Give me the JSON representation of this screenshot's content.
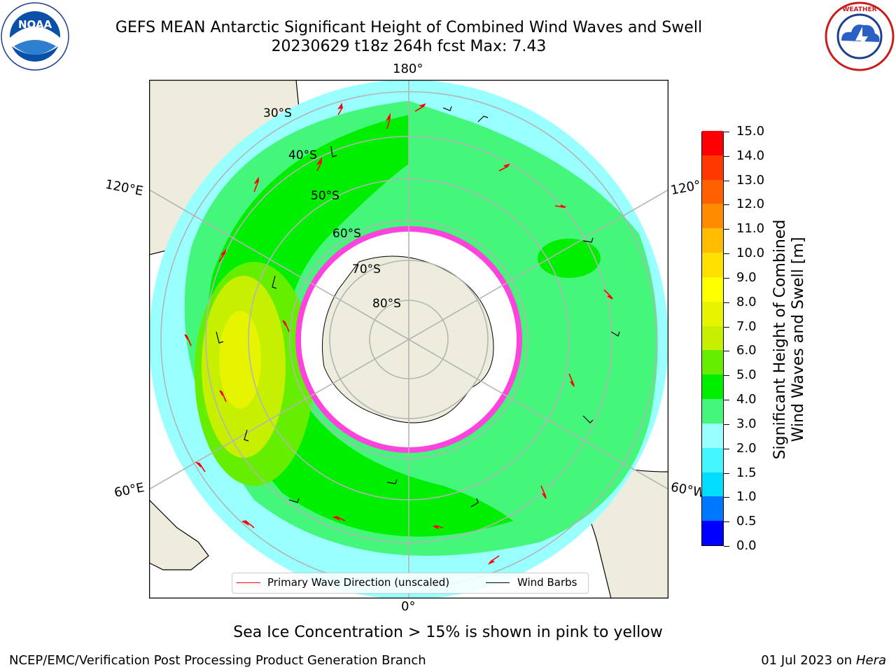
{
  "title": {
    "line1": "GEFS MEAN Antarctic Significant Height of Combined Wind Waves and Swell",
    "line2": "20230629 t18z 264h fcst   Max: 7.43"
  },
  "logos": {
    "left": "noaa-logo",
    "right": "national-weather-service-logo"
  },
  "map": {
    "projection": "south-polar-stereographic",
    "longitude_labels": {
      "top": "180°",
      "bottom": "0°",
      "upper_left": "120°E",
      "upper_right": "120°",
      "lower_left": "60°E",
      "lower_right": "60°W"
    },
    "latitude_labels": [
      "30°S",
      "40°S",
      "50°S",
      "60°S",
      "70°S",
      "80°S"
    ],
    "colors": {
      "land": "#eeecdc",
      "ice": "#ffffff",
      "ice_edge": "#ff44dd",
      "arrow": "#ff0000",
      "barb": "#000000",
      "gridline": "#b4b4b4"
    }
  },
  "legend": {
    "items": [
      {
        "label": "Primary Wave Direction (unscaled)",
        "color": "#ff0000"
      },
      {
        "label": "Wind Barbs",
        "color": "#000000"
      }
    ]
  },
  "colorbar": {
    "title_line1": "Significant Height of Combined",
    "title_line2": "Wind Waves and Swell [m]",
    "levels": [
      0.0,
      0.5,
      1.0,
      1.5,
      2.0,
      3.0,
      4.0,
      5.0,
      6.0,
      7.0,
      8.0,
      9.0,
      10.0,
      11.0,
      12.0,
      13.0,
      14.0,
      15.0
    ],
    "tick_labels": [
      "0.0",
      "0.5",
      "1.0",
      "1.5",
      "2.0",
      "3.0",
      "4.0",
      "5.0",
      "6.0",
      "7.0",
      "8.0",
      "9.0",
      "10.0",
      "11.0",
      "12.0",
      "13.0",
      "14.0",
      "15.0"
    ],
    "colors": [
      "#0000ff",
      "#0077ff",
      "#00ddff",
      "#44f6ff",
      "#99ffff",
      "#44f67a",
      "#00ee00",
      "#66ee00",
      "#c6f000",
      "#e6f400",
      "#ffff00",
      "#ffe000",
      "#ffbc00",
      "#ff8c00",
      "#ff6000",
      "#ff3800",
      "#ff0000"
    ]
  },
  "note": "Sea Ice Concentration > 15% is shown in pink to yellow",
  "footer": {
    "left": "NCEP/EMC/Verification Post Processing Product Generation Branch",
    "right_date": "01 Jul 2023 on",
    "right_machine": "Hera"
  }
}
